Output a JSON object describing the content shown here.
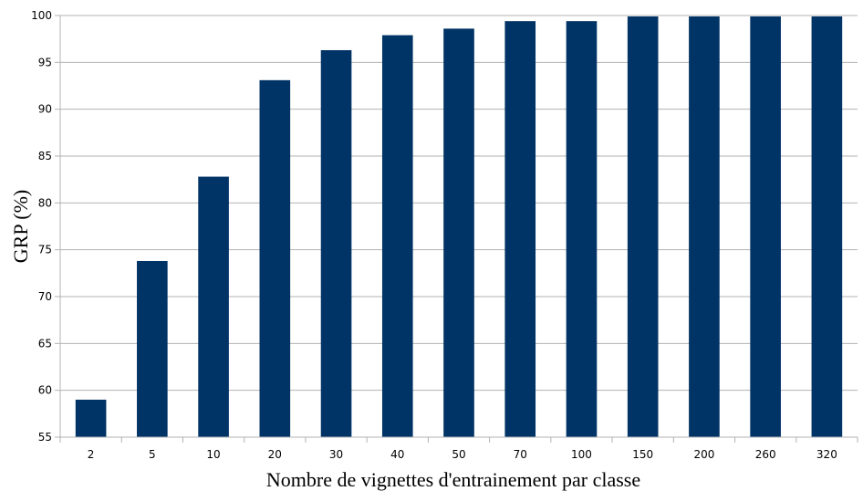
{
  "chart_data": {
    "type": "bar",
    "title": "",
    "xlabel": "Nombre de vignettes d'entrainement par classe",
    "ylabel": "GRP (%)",
    "categories": [
      "2",
      "5",
      "10",
      "20",
      "30",
      "40",
      "50",
      "70",
      "100",
      "150",
      "200",
      "260",
      "320"
    ],
    "values": [
      59,
      73.8,
      82.8,
      93.1,
      96.3,
      97.9,
      98.6,
      99.4,
      99.4,
      99.9,
      99.9,
      99.9,
      99.9
    ],
    "ylim": [
      55,
      100
    ],
    "yticks": [
      55,
      60,
      65,
      70,
      75,
      80,
      85,
      90,
      95,
      100
    ],
    "grid": true,
    "legend": "none",
    "bar_color": "#003366",
    "grid_color": "#b3b3b3"
  }
}
